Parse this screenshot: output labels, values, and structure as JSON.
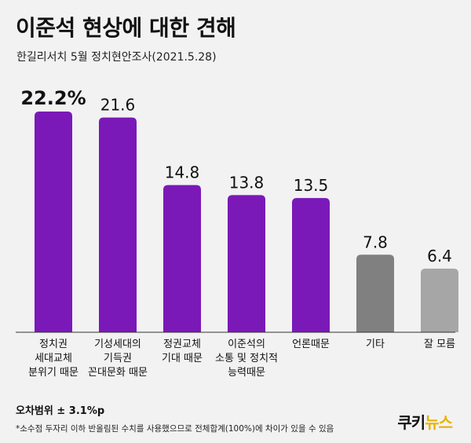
{
  "header": {
    "title": "이준석 현상에 대한 견해",
    "subtitle": "한길리서치 5월 정치현안조사(2021.5.28)"
  },
  "chart_data": {
    "type": "bar",
    "categories": [
      "정치권\n세대교체\n분위기 때문",
      "기성세대의\n기득권\n꼰대문화 때문",
      "정권교체\n기대 때문",
      "이준석의\n소통 및 정치적\n능력때문",
      "언론때문",
      "기타",
      "잘 모름"
    ],
    "values": [
      22.2,
      21.6,
      14.8,
      13.8,
      13.5,
      7.8,
      6.4
    ],
    "value_labels": [
      "22.2%",
      "21.6",
      "14.8",
      "13.8",
      "13.5",
      "7.8",
      "6.4"
    ],
    "colors": [
      "#7a19b8",
      "#7a19b8",
      "#7a19b8",
      "#7a19b8",
      "#7a19b8",
      "#808080",
      "#a6a6a6"
    ],
    "ylim": [
      0,
      22.2
    ],
    "grid": false,
    "legend": "none"
  },
  "footer": {
    "margin_of_error": "오차범위 ± 3.1%p",
    "note": "*소수점 두자리 이하 반올림된 수치를 사용했으므로 전체합계(100%)에 차이가 있을 수 있음",
    "logo_part1": "쿠키",
    "logo_part2": "뉴스"
  }
}
